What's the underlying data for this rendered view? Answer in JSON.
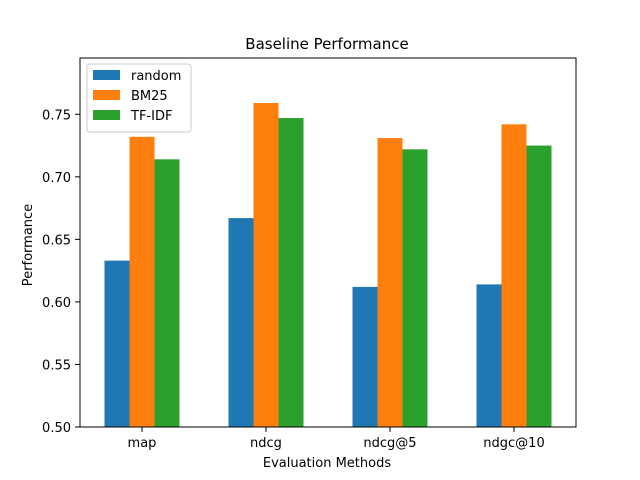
{
  "chart_data": {
    "type": "bar",
    "title": "Baseline Performance",
    "xlabel": "Evaluation Methods",
    "ylabel": "Performance",
    "categories": [
      "map",
      "ndcg",
      "ndcg@5",
      "ndgc@10"
    ],
    "series": [
      {
        "name": "random",
        "color": "#1f77b4",
        "values": [
          0.633,
          0.667,
          0.612,
          0.614
        ]
      },
      {
        "name": "BM25",
        "color": "#ff7f0e",
        "values": [
          0.732,
          0.759,
          0.731,
          0.742
        ]
      },
      {
        "name": "TF-IDF",
        "color": "#2ca02c",
        "values": [
          0.714,
          0.747,
          0.722,
          0.725
        ]
      }
    ],
    "ylim": [
      0.5,
      0.795
    ],
    "yticks": [
      "0.50",
      "0.55",
      "0.60",
      "0.65",
      "0.70",
      "0.75"
    ],
    "legend_position": "upper-left",
    "grid": false
  }
}
